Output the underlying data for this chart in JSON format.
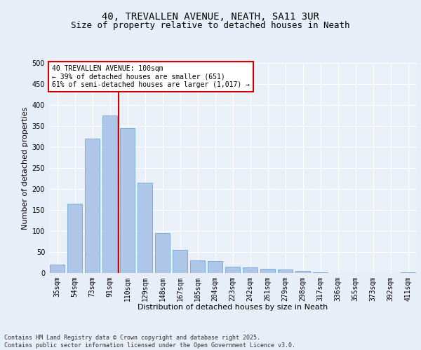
{
  "title_line1": "40, TREVALLEN AVENUE, NEATH, SA11 3UR",
  "title_line2": "Size of property relative to detached houses in Neath",
  "xlabel": "Distribution of detached houses by size in Neath",
  "ylabel": "Number of detached properties",
  "bar_color": "#aec6e8",
  "bar_edge_color": "#5b9bd5",
  "background_color": "#e8eef7",
  "plot_bg_color": "#eaf0f8",
  "grid_color": "#ffffff",
  "vline_color": "#cc0000",
  "annotation_text": "40 TREVALLEN AVENUE: 100sqm\n← 39% of detached houses are smaller (651)\n61% of semi-detached houses are larger (1,017) →",
  "annotation_box_color": "#ffffff",
  "annotation_box_edge": "#cc0000",
  "categories": [
    "35sqm",
    "54sqm",
    "73sqm",
    "91sqm",
    "110sqm",
    "129sqm",
    "148sqm",
    "167sqm",
    "185sqm",
    "204sqm",
    "223sqm",
    "242sqm",
    "261sqm",
    "279sqm",
    "298sqm",
    "317sqm",
    "336sqm",
    "355sqm",
    "373sqm",
    "392sqm",
    "411sqm"
  ],
  "values": [
    20,
    165,
    320,
    375,
    345,
    215,
    95,
    55,
    30,
    28,
    15,
    14,
    10,
    8,
    5,
    2,
    0,
    0,
    0,
    0,
    1
  ],
  "ylim": [
    0,
    500
  ],
  "yticks": [
    0,
    50,
    100,
    150,
    200,
    250,
    300,
    350,
    400,
    450,
    500
  ],
  "vline_index": 3.5,
  "footer_text": "Contains HM Land Registry data © Crown copyright and database right 2025.\nContains public sector information licensed under the Open Government Licence v3.0.",
  "title_fontsize": 10,
  "subtitle_fontsize": 9,
  "axis_label_fontsize": 8,
  "tick_fontsize": 7,
  "footer_fontsize": 6,
  "ann_fontsize": 7
}
